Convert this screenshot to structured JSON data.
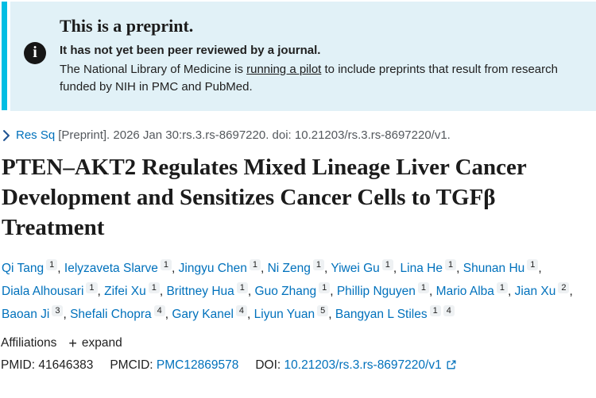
{
  "colors": {
    "accent_bar": "#00bde3",
    "banner_background": "#e1f1f7",
    "link_blue": "#0071bc",
    "text_dark": "#212121",
    "citation_gray": "#54585d",
    "superscript_box": "#eef1f3"
  },
  "banner": {
    "icon": "info-icon",
    "icon_glyph": "i",
    "heading": "This is a preprint.",
    "subheading": "It has not yet been peer reviewed by a journal.",
    "body_before_link": "The National Library of Medicine is ",
    "link_text": "running a pilot",
    "body_after_link": " to include preprints that result from research funded by NIH in PMC and PubMed."
  },
  "citation": {
    "icon": "chevron-right-icon",
    "journal": "Res Sq",
    "rest": "[Preprint]. 2026 Jan 30:rs.3.rs-8697220. doi: 10.21203/rs.3.rs-8697220/v1."
  },
  "article": {
    "title": "PTEN–AKT2 Regulates Mixed Lineage Liver Cancer Development and Sensitizes Cancer Cells to TGFβ Treatment"
  },
  "authors": [
    {
      "name": "Qi Tang",
      "sups": [
        "1"
      ]
    },
    {
      "name": "Ielyzaveta Slarve",
      "sups": [
        "1"
      ]
    },
    {
      "name": "Jingyu Chen",
      "sups": [
        "1"
      ]
    },
    {
      "name": "Ni Zeng",
      "sups": [
        "1"
      ]
    },
    {
      "name": "Yiwei Gu",
      "sups": [
        "1"
      ]
    },
    {
      "name": "Lina He",
      "sups": [
        "1"
      ]
    },
    {
      "name": "Shunan Hu",
      "sups": [
        "1"
      ]
    },
    {
      "name": "Diala Alhousari",
      "sups": [
        "1"
      ]
    },
    {
      "name": "Zifei Xu",
      "sups": [
        "1"
      ]
    },
    {
      "name": "Brittney Hua",
      "sups": [
        "1"
      ]
    },
    {
      "name": "Guo Zhang",
      "sups": [
        "1"
      ]
    },
    {
      "name": "Phillip Nguyen",
      "sups": [
        "1"
      ]
    },
    {
      "name": "Mario Alba",
      "sups": [
        "1"
      ]
    },
    {
      "name": "Jian Xu",
      "sups": [
        "2"
      ]
    },
    {
      "name": "Baoan Ji",
      "sups": [
        "3"
      ]
    },
    {
      "name": "Shefali Chopra",
      "sups": [
        "4"
      ]
    },
    {
      "name": "Gary Kanel",
      "sups": [
        "4"
      ]
    },
    {
      "name": "Liyun Yuan",
      "sups": [
        "5"
      ]
    },
    {
      "name": "Bangyan L Stiles",
      "sups": [
        "1",
        "4"
      ]
    }
  ],
  "affiliations": {
    "label": "Affiliations",
    "plus_icon": "plus-icon",
    "plus_glyph": "+",
    "expand_label": "expand"
  },
  "identifiers": {
    "pmid_label": "PMID:",
    "pmid_value": "41646383",
    "pmcid_label": "PMCID:",
    "pmcid_value": "PMC12869578",
    "doi_label": "DOI:",
    "doi_value": "10.21203/rs.3.rs-8697220/v1",
    "doi_external_icon": "external-link-icon"
  }
}
